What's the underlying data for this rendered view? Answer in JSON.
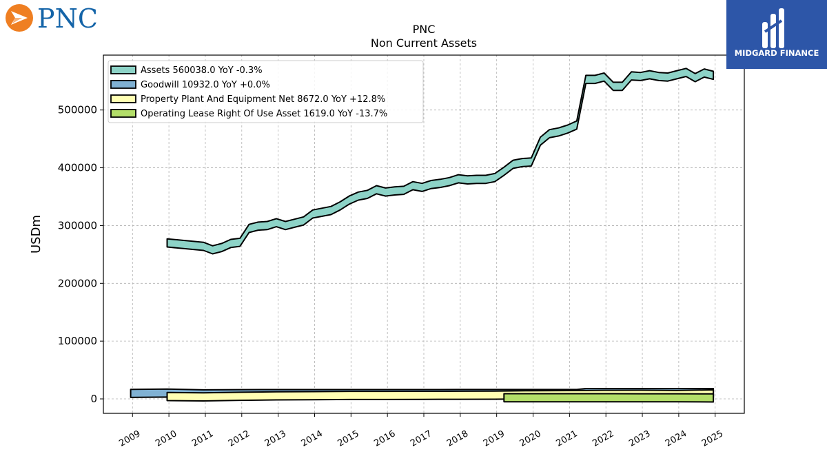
{
  "logo": {
    "pnc_text": "PNC",
    "midgard_text": "MIDGARD FINANCE"
  },
  "colors": {
    "assets": "#8dd3c7",
    "goodwill": "#80b1d3",
    "ppe": "#ffffb3",
    "lease": "#b3de69",
    "pnc_orange": "#ef7f22",
    "pnc_blue": "#1464a8",
    "midgard_blue": "#2d56a8"
  },
  "chart_data": {
    "type": "area",
    "title": "PNC",
    "subtitle": "Non Current  Assets",
    "ylabel": "USDm",
    "xlabel": "",
    "ylim": [
      -25000,
      595000
    ],
    "xlim": [
      2008.2,
      2025.8
    ],
    "grid": true,
    "legend_position": "top-left",
    "y_ticks": [
      0,
      100000,
      200000,
      300000,
      400000,
      500000
    ],
    "x_ticks": [
      "2009",
      "2010",
      "2011",
      "2012",
      "2013",
      "2014",
      "2015",
      "2016",
      "2017",
      "2018",
      "2019",
      "2020",
      "2021",
      "2022",
      "2023",
      "2024",
      "2025"
    ],
    "series": [
      {
        "name": "Assets  560038.0 YoY -0.3%",
        "key": "assets",
        "points": [
          [
            2009.95,
            270000
          ],
          [
            2010.95,
            264000
          ],
          [
            2011.2,
            258000
          ],
          [
            2011.45,
            262000
          ],
          [
            2011.7,
            269000
          ],
          [
            2011.95,
            271000
          ],
          [
            2012.2,
            295000
          ],
          [
            2012.45,
            299000
          ],
          [
            2012.7,
            300000
          ],
          [
            2012.95,
            305000
          ],
          [
            2013.2,
            300000
          ],
          [
            2013.45,
            304000
          ],
          [
            2013.7,
            308000
          ],
          [
            2013.95,
            320000
          ],
          [
            2014.45,
            326000
          ],
          [
            2014.7,
            334000
          ],
          [
            2014.95,
            344000
          ],
          [
            2015.2,
            351000
          ],
          [
            2015.45,
            354000
          ],
          [
            2015.7,
            362000
          ],
          [
            2015.95,
            358000
          ],
          [
            2016.2,
            360000
          ],
          [
            2016.45,
            361000
          ],
          [
            2016.7,
            369000
          ],
          [
            2016.95,
            366000
          ],
          [
            2017.2,
            371000
          ],
          [
            2017.45,
            373000
          ],
          [
            2017.7,
            376000
          ],
          [
            2017.95,
            381000
          ],
          [
            2018.2,
            379000
          ],
          [
            2018.45,
            380000
          ],
          [
            2018.7,
            380000
          ],
          [
            2018.95,
            383000
          ],
          [
            2019.2,
            394000
          ],
          [
            2019.45,
            406000
          ],
          [
            2019.7,
            409000
          ],
          [
            2019.95,
            410000
          ],
          [
            2020.2,
            446000
          ],
          [
            2020.45,
            459000
          ],
          [
            2020.7,
            462000
          ],
          [
            2020.95,
            467000
          ],
          [
            2021.2,
            474000
          ],
          [
            2021.45,
            553000
          ],
          [
            2021.7,
            553000
          ],
          [
            2021.95,
            557000
          ],
          [
            2022.2,
            541000
          ],
          [
            2022.45,
            541000
          ],
          [
            2022.7,
            559000
          ],
          [
            2022.95,
            558000
          ],
          [
            2023.2,
            561000
          ],
          [
            2023.45,
            558000
          ],
          [
            2023.7,
            557000
          ],
          [
            2023.95,
            561000
          ],
          [
            2024.2,
            565000
          ],
          [
            2024.45,
            556000
          ],
          [
            2024.7,
            564000
          ],
          [
            2024.95,
            560038
          ]
        ]
      },
      {
        "name": "Goodwill  10932.0 YoY +0.0%",
        "key": "goodwill",
        "points": [
          [
            2008.95,
            9500
          ],
          [
            2009.95,
            10100
          ],
          [
            2010.95,
            8700
          ],
          [
            2011.95,
            9000
          ],
          [
            2012.95,
            9100
          ],
          [
            2013.95,
            9100
          ],
          [
            2014.95,
            9100
          ],
          [
            2015.95,
            9100
          ],
          [
            2016.95,
            9100
          ],
          [
            2017.95,
            9200
          ],
          [
            2018.95,
            9200
          ],
          [
            2019.95,
            9200
          ],
          [
            2020.95,
            9200
          ],
          [
            2021.2,
            9200
          ],
          [
            2021.45,
            10900
          ],
          [
            2021.95,
            10900
          ],
          [
            2022.95,
            10900
          ],
          [
            2023.95,
            10900
          ],
          [
            2024.95,
            10932
          ]
        ]
      },
      {
        "name": "Property Plant And Equipment Net  8672.0 YoY +12.8%",
        "key": "ppe",
        "points": [
          [
            2009.95,
            4000
          ],
          [
            2010.95,
            3500
          ],
          [
            2011.95,
            4500
          ],
          [
            2012.95,
            5200
          ],
          [
            2013.95,
            5600
          ],
          [
            2014.95,
            6000
          ],
          [
            2015.95,
            6000
          ],
          [
            2016.95,
            6200
          ],
          [
            2017.95,
            6300
          ],
          [
            2018.95,
            6500
          ],
          [
            2019.95,
            7100
          ],
          [
            2020.95,
            7300
          ],
          [
            2021.95,
            7900
          ],
          [
            2022.95,
            8100
          ],
          [
            2023.95,
            7700
          ],
          [
            2024.95,
            8672
          ]
        ]
      },
      {
        "name": "Operating Lease Right Of Use Asset  1619.0 YoY -13.7%",
        "key": "lease",
        "points": [
          [
            2019.2,
            2000
          ],
          [
            2019.95,
            2000
          ],
          [
            2020.95,
            2000
          ],
          [
            2021.95,
            2000
          ],
          [
            2022.95,
            1900
          ],
          [
            2023.95,
            1900
          ],
          [
            2024.95,
            1619
          ]
        ]
      }
    ]
  }
}
